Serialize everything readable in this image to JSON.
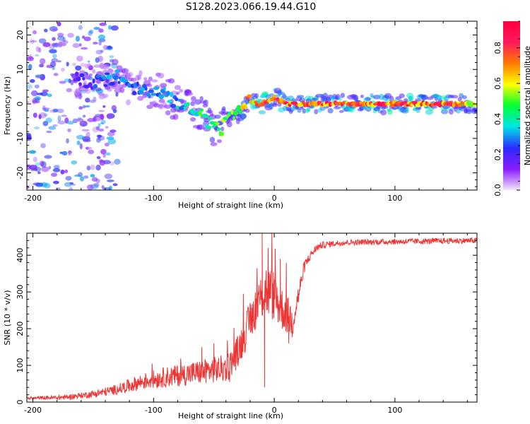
{
  "title": "S128.2023.066.19.44.G10",
  "chart_data": [
    {
      "type": "heatmap",
      "name": "spectrogram",
      "xlabel": "Height of straight line (km)",
      "ylabel": "Frequency (Hz)",
      "xlim": [
        -205,
        168
      ],
      "ylim": [
        -25,
        24
      ],
      "xticks": [
        -200,
        -100,
        0,
        100
      ],
      "xtick_labels": [
        "-200",
        "-100",
        "0",
        "100"
      ],
      "yticks": [
        -20,
        -10,
        0,
        10,
        20
      ],
      "ytick_labels": [
        "-20",
        "-10",
        "0",
        "10",
        "20"
      ],
      "colorbar": {
        "label": "Normalized spectral amplitude",
        "range": [
          0.0,
          0.95
        ],
        "ticks": [
          0.0,
          0.2,
          0.4,
          0.6,
          0.8
        ],
        "tick_labels": [
          "0.0",
          "0.2",
          "0.4",
          "0.6",
          "0.8"
        ],
        "colors": [
          "#f2e6fa",
          "#8a1aff",
          "#2b2bff",
          "#00e5e5",
          "#00ff33",
          "#ffff00",
          "#ff7a00",
          "#ff1a5c",
          "#ff0040"
        ]
      },
      "ridge": {
        "x": [
          -160,
          -150,
          -140,
          -130,
          -120,
          -110,
          -100,
          -90,
          -80,
          -70,
          -60,
          -50,
          -45,
          -40,
          -35,
          -30,
          -25,
          -20,
          -15,
          -10,
          -5,
          0,
          5,
          10,
          20,
          40,
          60,
          80,
          100,
          120,
          140,
          165
        ],
        "frequency_hz": [
          7,
          6,
          7,
          8,
          5,
          4,
          4,
          3,
          0,
          -1,
          -3,
          -7,
          -8,
          -5,
          -4,
          -3,
          -1,
          1,
          0,
          0,
          1,
          2,
          1,
          0,
          0,
          0,
          0,
          0,
          0,
          0,
          0,
          0
        ],
        "amplitude": [
          0.2,
          0.25,
          0.3,
          0.3,
          0.3,
          0.3,
          0.3,
          0.3,
          0.35,
          0.4,
          0.45,
          0.45,
          0.5,
          0.55,
          0.55,
          0.6,
          0.65,
          0.75,
          0.8,
          0.85,
          0.8,
          0.75,
          0.8,
          0.8,
          0.82,
          0.8,
          0.78,
          0.8,
          0.82,
          0.85,
          0.8,
          0.6
        ]
      },
      "noise_region": {
        "x_range": [
          -205,
          -150
        ],
        "frequency_range": [
          -25,
          24
        ],
        "amplitude": 0.15
      }
    },
    {
      "type": "line",
      "name": "snr",
      "xlabel": "Height of straight line (km)",
      "ylabel": "SNR (10 * v/v)",
      "xlim": [
        -205,
        168
      ],
      "ylim": [
        0,
        460
      ],
      "xticks": [
        -200,
        -100,
        0,
        100
      ],
      "xtick_labels": [
        "-200",
        "-100",
        "0",
        "100"
      ],
      "yticks": [
        0,
        100,
        200,
        300,
        400
      ],
      "ytick_labels": [
        "0",
        "100",
        "200",
        "300",
        "400"
      ],
      "color": "#ee3333",
      "series": [
        {
          "name": "SNR",
          "x": [
            -205,
            -190,
            -180,
            -170,
            -160,
            -150,
            -140,
            -130,
            -120,
            -110,
            -100,
            -90,
            -80,
            -70,
            -60,
            -50,
            -40,
            -35,
            -30,
            -25,
            -20,
            -15,
            -10,
            -8,
            -5,
            0,
            5,
            10,
            15,
            20,
            25,
            30,
            35,
            40,
            50,
            60,
            80,
            100,
            120,
            140,
            168
          ],
          "values": [
            10,
            12,
            12,
            14,
            18,
            22,
            28,
            35,
            45,
            55,
            62,
            68,
            72,
            78,
            82,
            88,
            92,
            110,
            140,
            180,
            220,
            260,
            290,
            310,
            300,
            290,
            260,
            240,
            220,
            290,
            370,
            400,
            420,
            428,
            432,
            435,
            436,
            437,
            438,
            439,
            440
          ],
          "noise": [
            4,
            5,
            6,
            7,
            8,
            10,
            12,
            14,
            18,
            22,
            25,
            28,
            30,
            32,
            34,
            36,
            38,
            40,
            45,
            50,
            55,
            60,
            70,
            80,
            75,
            70,
            60,
            55,
            50,
            30,
            18,
            12,
            10,
            9,
            8,
            8,
            8,
            8,
            8,
            8,
            8
          ]
        }
      ],
      "spikes": [
        {
          "x": -60,
          "value": 150
        },
        {
          "x": -50,
          "value": 160
        },
        {
          "x": -20,
          "value": 270
        },
        {
          "x": -10,
          "value": 460
        },
        {
          "x": -5,
          "value": 420
        },
        {
          "x": 5,
          "value": 390
        },
        {
          "x": 10,
          "value": 380
        },
        {
          "x": -8,
          "value": 40
        },
        {
          "x": 12,
          "value": 160
        }
      ]
    }
  ]
}
